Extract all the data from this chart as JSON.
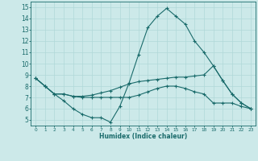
{
  "xlabel": "Humidex (Indice chaleur)",
  "xlim": [
    -0.5,
    23.5
  ],
  "ylim": [
    4.5,
    15.5
  ],
  "yticks": [
    5,
    6,
    7,
    8,
    9,
    10,
    11,
    12,
    13,
    14,
    15
  ],
  "xticks": [
    0,
    1,
    2,
    3,
    4,
    5,
    6,
    7,
    8,
    9,
    10,
    11,
    12,
    13,
    14,
    15,
    16,
    17,
    18,
    19,
    20,
    21,
    22,
    23
  ],
  "bg_color": "#cce9e9",
  "grid_color": "#b0d8d8",
  "line_color": "#1a6b6b",
  "line1_x": [
    0,
    1,
    2,
    3,
    4,
    5,
    6,
    7,
    8,
    9,
    10,
    11,
    12,
    13,
    14,
    15,
    16,
    17,
    18,
    19,
    20,
    21,
    22,
    23
  ],
  "line1_y": [
    8.7,
    8.0,
    7.3,
    6.7,
    6.0,
    5.5,
    5.2,
    5.2,
    4.8,
    6.2,
    8.3,
    10.8,
    13.2,
    14.2,
    14.9,
    14.2,
    13.5,
    12.0,
    11.0,
    9.8,
    8.5,
    7.3,
    6.5,
    6.0
  ],
  "line2_x": [
    0,
    1,
    2,
    3,
    4,
    5,
    6,
    7,
    8,
    9,
    10,
    11,
    12,
    13,
    14,
    15,
    16,
    17,
    18,
    19,
    20,
    21,
    22,
    23
  ],
  "line2_y": [
    8.7,
    8.0,
    7.3,
    7.3,
    7.1,
    7.1,
    7.2,
    7.4,
    7.6,
    7.9,
    8.2,
    8.4,
    8.5,
    8.6,
    8.7,
    8.8,
    8.8,
    8.9,
    9.0,
    9.8,
    8.5,
    7.3,
    6.5,
    6.0
  ],
  "line3_x": [
    0,
    1,
    2,
    3,
    4,
    5,
    6,
    7,
    8,
    9,
    10,
    11,
    12,
    13,
    14,
    15,
    16,
    17,
    18,
    19,
    20,
    21,
    22,
    23
  ],
  "line3_y": [
    8.7,
    8.0,
    7.3,
    7.3,
    7.1,
    7.0,
    7.0,
    7.0,
    7.0,
    7.0,
    7.0,
    7.2,
    7.5,
    7.8,
    8.0,
    8.0,
    7.8,
    7.5,
    7.3,
    6.5,
    6.5,
    6.5,
    6.2,
    6.0
  ]
}
